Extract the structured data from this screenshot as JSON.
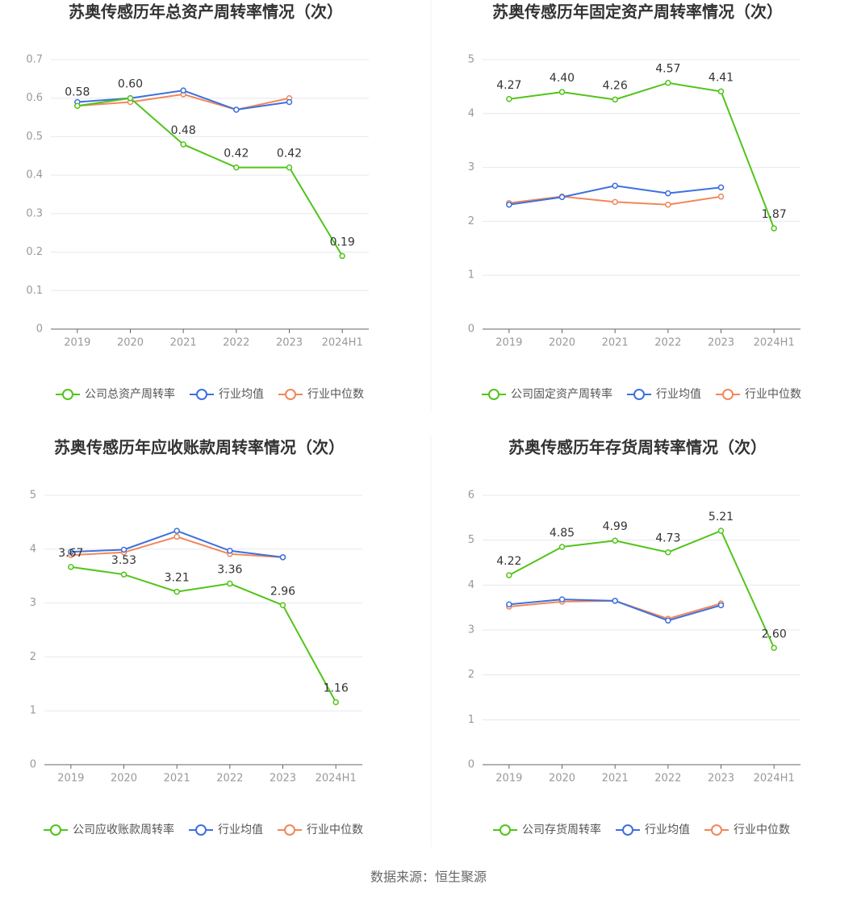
{
  "chart_data": [
    {
      "type": "line",
      "title": "苏奥传感历年总资产周转率情况（次）",
      "categories": [
        "2019",
        "2020",
        "2021",
        "2022",
        "2023",
        "2024H1"
      ],
      "ylim": [
        0,
        0.7
      ],
      "yticks": [
        0,
        0.1,
        0.2,
        0.3,
        0.4,
        0.5,
        0.6,
        0.7
      ],
      "grid": true,
      "series": [
        {
          "name": "公司总资产周转率",
          "color": "#52c41a",
          "values": [
            0.58,
            0.6,
            0.48,
            0.42,
            0.42,
            0.19
          ],
          "value_labels": [
            "0.58",
            "0.60",
            "0.48",
            "0.42",
            "0.42",
            "0.19"
          ]
        },
        {
          "name": "行业均值",
          "color": "#3e70de",
          "values": [
            0.59,
            0.6,
            0.62,
            0.57,
            0.59,
            null
          ]
        },
        {
          "name": "行业中位数",
          "color": "#f0885a",
          "values": [
            0.58,
            0.59,
            0.61,
            0.57,
            0.6,
            null
          ]
        }
      ]
    },
    {
      "type": "line",
      "title": "苏奥传感历年固定资产周转率情况（次）",
      "categories": [
        "2019",
        "2020",
        "2021",
        "2022",
        "2023",
        "2024H1"
      ],
      "ylim": [
        0,
        5
      ],
      "yticks": [
        0,
        1,
        2,
        3,
        4,
        5
      ],
      "grid": true,
      "series": [
        {
          "name": "公司固定资产周转率",
          "color": "#52c41a",
          "values": [
            4.27,
            4.4,
            4.26,
            4.57,
            4.41,
            1.87
          ],
          "value_labels": [
            "4.27",
            "4.40",
            "4.26",
            "4.57",
            "4.41",
            "1.87"
          ]
        },
        {
          "name": "行业均值",
          "color": "#3e70de",
          "values": [
            2.31,
            2.45,
            2.66,
            2.52,
            2.63,
            null
          ]
        },
        {
          "name": "行业中位数",
          "color": "#f0885a",
          "values": [
            2.34,
            2.46,
            2.36,
            2.31,
            2.46,
            null
          ]
        }
      ]
    },
    {
      "type": "line",
      "title": "苏奥传感历年应收账款周转率情况（次）",
      "categories": [
        "2019",
        "2020",
        "2021",
        "2022",
        "2023",
        "2024H1"
      ],
      "ylim": [
        0,
        5
      ],
      "yticks": [
        0,
        1,
        2,
        3,
        4,
        5
      ],
      "grid": true,
      "series": [
        {
          "name": "公司应收账款周转率",
          "color": "#52c41a",
          "values": [
            3.67,
            3.53,
            3.21,
            3.36,
            2.96,
            1.16
          ],
          "value_labels": [
            "3.67",
            "3.53",
            "3.21",
            "3.36",
            "2.96",
            "1.16"
          ]
        },
        {
          "name": "行业均值",
          "color": "#3e70de",
          "values": [
            3.95,
            3.99,
            4.34,
            3.97,
            3.85,
            null
          ]
        },
        {
          "name": "行业中位数",
          "color": "#f0885a",
          "values": [
            3.89,
            3.94,
            4.23,
            3.91,
            3.85,
            null
          ]
        }
      ]
    },
    {
      "type": "line",
      "title": "苏奥传感历年存货周转率情况（次）",
      "categories": [
        "2019",
        "2020",
        "2021",
        "2022",
        "2023",
        "2024H1"
      ],
      "ylim": [
        0,
        6
      ],
      "yticks": [
        0,
        1,
        2,
        3,
        4,
        5,
        6
      ],
      "grid": true,
      "series": [
        {
          "name": "公司存货周转率",
          "color": "#52c41a",
          "values": [
            4.22,
            4.85,
            4.99,
            4.73,
            5.21,
            2.6
          ],
          "value_labels": [
            "4.22",
            "4.85",
            "4.99",
            "4.73",
            "5.21",
            "2.60"
          ]
        },
        {
          "name": "行业均值",
          "color": "#3e70de",
          "values": [
            3.57,
            3.68,
            3.65,
            3.21,
            3.55,
            null
          ]
        },
        {
          "name": "行业中位数",
          "color": "#f0885a",
          "values": [
            3.52,
            3.63,
            3.65,
            3.25,
            3.59,
            null
          ]
        }
      ]
    }
  ],
  "source": "数据来源：恒生聚源"
}
